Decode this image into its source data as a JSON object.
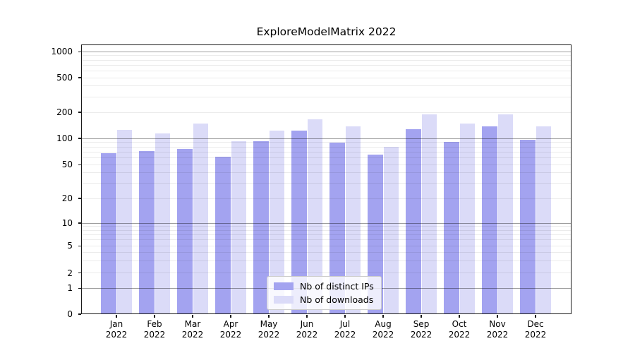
{
  "chart_data": {
    "type": "bar",
    "title": "ExploreModelMatrix 2022",
    "categories": [
      "Jan",
      "Feb",
      "Mar",
      "Apr",
      "May",
      "Jun",
      "Jul",
      "Aug",
      "Sep",
      "Oct",
      "Nov",
      "Dec"
    ],
    "x_year": "2022",
    "series": [
      {
        "name": "Nb of distinct IPs",
        "color": "#a3a3f0",
        "values": [
          68,
          71,
          75,
          62,
          92,
          124,
          89,
          65,
          127,
          91,
          138,
          97
        ]
      },
      {
        "name": "Nb of downloads",
        "color": "#dbdbf8",
        "values": [
          125,
          113,
          148,
          93,
          124,
          165,
          138,
          80,
          188,
          149,
          190,
          138
        ]
      }
    ],
    "yscale": "symlog",
    "yticks": [
      0,
      1,
      2,
      5,
      10,
      20,
      50,
      100,
      200,
      500,
      1000
    ],
    "ylim": [
      0,
      1300
    ],
    "grid": true,
    "legend_position": "lower center",
    "grid_major_color": "rgba(0,0,0,0.38)",
    "grid_minor_color": "rgba(0,0,0,0.08)",
    "axis_color": "#1a1a1a"
  }
}
